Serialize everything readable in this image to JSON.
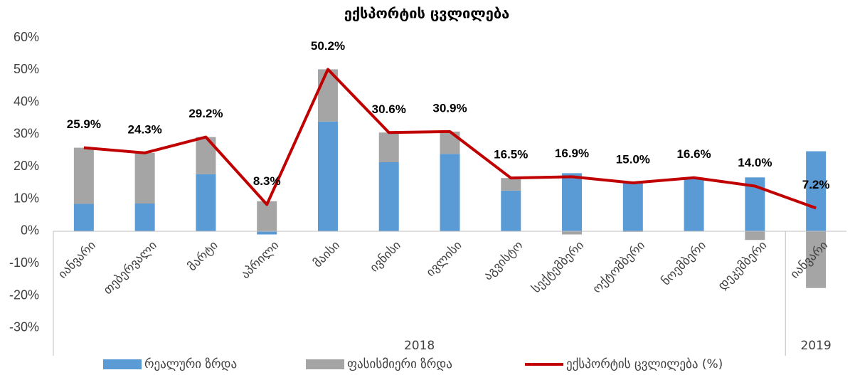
{
  "chart_data": {
    "type": "bar",
    "title": "ექსპორტის ცვლილება",
    "categories": [
      "იანვარი",
      "თებერვალი",
      "მარტი",
      "აპრილი",
      "მაისი",
      "ივნისი",
      "ივლისი",
      "აგვისტო",
      "სექტემბერი",
      "ოქტომბერი",
      "ნოემბერი",
      "დეკემბერი",
      "იანვარი"
    ],
    "groups": [
      {
        "label": "2018",
        "span": 12
      },
      {
        "label": "2019",
        "span": 1
      }
    ],
    "series": [
      {
        "name": "რეალური ზრდა",
        "color": "#5b9bd5",
        "kind": "bar",
        "values": [
          8.5,
          8.6,
          17.7,
          -1.0,
          34.0,
          21.4,
          24.0,
          12.6,
          18.0,
          15.2,
          16.4,
          16.7,
          24.8
        ]
      },
      {
        "name": "ფასისმიერი ზრდა",
        "color": "#a5a5a5",
        "kind": "bar",
        "values": [
          17.4,
          15.7,
          11.5,
          9.3,
          16.2,
          9.2,
          6.9,
          3.9,
          -1.0,
          -0.2,
          0.2,
          -2.7,
          -17.6
        ]
      },
      {
        "name": "ექსპორტის ცვლილება (%)",
        "color": "#c00000",
        "kind": "line",
        "values": [
          25.9,
          24.3,
          29.2,
          8.3,
          50.2,
          30.6,
          30.9,
          16.5,
          16.9,
          15.0,
          16.6,
          14.0,
          7.2
        ],
        "value_labels": [
          "25.9%",
          "24.3%",
          "29.2%",
          "8.3%",
          "50.2%",
          "30.6%",
          "30.9%",
          "16.5%",
          "16.9%",
          "15.0%",
          "16.6%",
          "14.0%",
          "7.2%"
        ]
      }
    ],
    "ylim": [
      -30,
      60
    ],
    "yticks": [
      {
        "value": -30,
        "label": "-30%"
      },
      {
        "value": -20,
        "label": "-20%"
      },
      {
        "value": -10,
        "label": "-10%"
      },
      {
        "value": 0,
        "label": "0%"
      },
      {
        "value": 10,
        "label": "10%"
      },
      {
        "value": 20,
        "label": "20%"
      },
      {
        "value": 30,
        "label": "30%"
      },
      {
        "value": 40,
        "label": "40%"
      },
      {
        "value": 50,
        "label": "50%"
      },
      {
        "value": 60,
        "label": "60%"
      }
    ],
    "grid": false
  }
}
